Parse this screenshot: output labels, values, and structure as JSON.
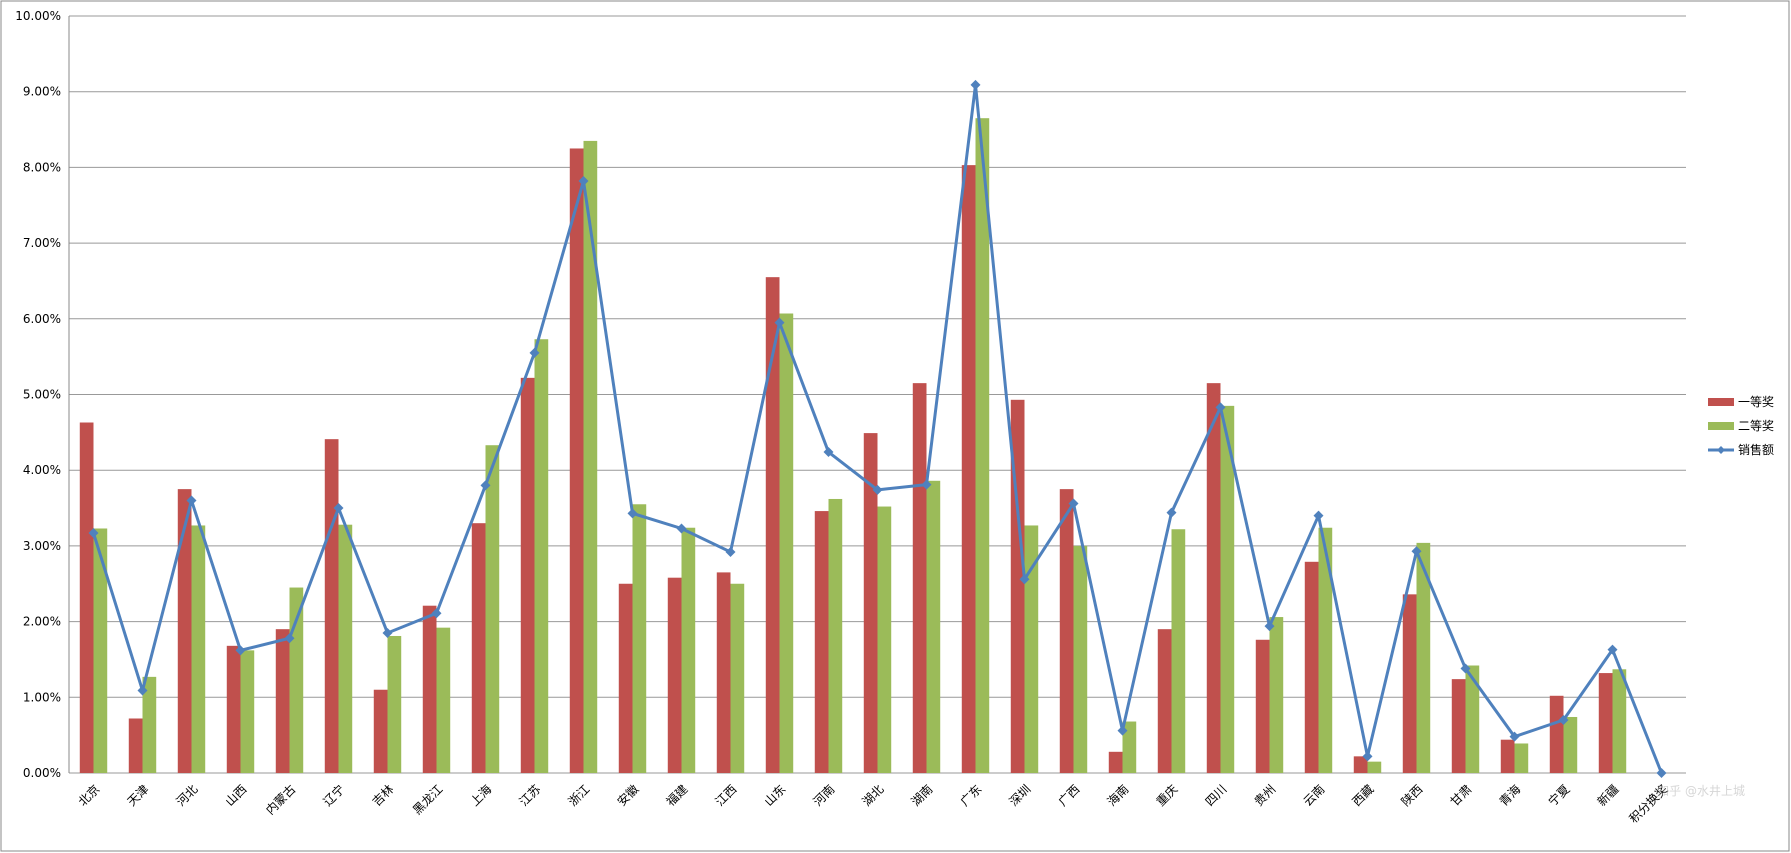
{
  "chart_data": {
    "type": "bar_line",
    "categories": [
      "北京",
      "天津",
      "河北",
      "山西",
      "内蒙古",
      "辽宁",
      "吉林",
      "黑龙江",
      "上海",
      "江苏",
      "浙江",
      "安徽",
      "福建",
      "江西",
      "山东",
      "河南",
      "湖北",
      "湖南",
      "广东",
      "深圳",
      "广西",
      "海南",
      "重庆",
      "四川",
      "贵州",
      "云南",
      "西藏",
      "陕西",
      "甘肃",
      "青海",
      "宁夏",
      "新疆",
      "积分换奖"
    ],
    "series": [
      {
        "name": "一等奖",
        "kind": "bar",
        "color": "#c0504d",
        "values": [
          4.63,
          0.72,
          3.75,
          1.68,
          1.9,
          4.41,
          1.1,
          2.21,
          3.3,
          5.22,
          8.25,
          2.5,
          2.58,
          2.65,
          6.55,
          3.46,
          4.49,
          5.15,
          8.03,
          4.93,
          3.75,
          0.28,
          1.9,
          5.15,
          1.76,
          2.79,
          0.22,
          2.36,
          1.24,
          0.44,
          1.02,
          1.32,
          0
        ]
      },
      {
        "name": "二等奖",
        "kind": "bar",
        "color": "#9bbb59",
        "values": [
          3.23,
          1.27,
          3.27,
          1.62,
          2.45,
          3.28,
          1.81,
          1.92,
          4.33,
          5.73,
          8.35,
          3.55,
          3.24,
          2.5,
          6.07,
          3.62,
          3.52,
          3.86,
          8.65,
          3.27,
          3.0,
          0.68,
          3.22,
          4.85,
          2.06,
          3.24,
          0.15,
          3.04,
          1.42,
          0.39,
          0.74,
          1.37,
          0
        ]
      },
      {
        "name": "销售额",
        "kind": "line",
        "color": "#4f81bd",
        "values": [
          3.17,
          1.09,
          3.6,
          1.62,
          1.78,
          3.5,
          1.85,
          2.11,
          3.8,
          5.55,
          7.82,
          3.43,
          3.23,
          2.92,
          5.95,
          4.24,
          3.74,
          3.81,
          9.09,
          2.56,
          3.56,
          0.56,
          3.44,
          4.83,
          1.94,
          3.4,
          0.22,
          2.93,
          1.38,
          0.48,
          0.7,
          1.63,
          0
        ]
      }
    ],
    "ylim": [
      0,
      10
    ],
    "yticks": [
      {
        "value": 0,
        "label": "0.00%"
      },
      {
        "value": 1,
        "label": "1.00%"
      },
      {
        "value": 2,
        "label": "2.00%"
      },
      {
        "value": 3,
        "label": "3.00%"
      },
      {
        "value": 4,
        "label": "4.00%"
      },
      {
        "value": 5,
        "label": "5.00%"
      },
      {
        "value": 6,
        "label": "6.00%"
      },
      {
        "value": 7,
        "label": "7.00%"
      },
      {
        "value": 8,
        "label": "8.00%"
      },
      {
        "value": 9,
        "label": "9.00%"
      },
      {
        "value": 10,
        "label": "10.00%"
      }
    ],
    "grid": true,
    "legend": "right",
    "watermark": "知乎 @水井上城"
  }
}
